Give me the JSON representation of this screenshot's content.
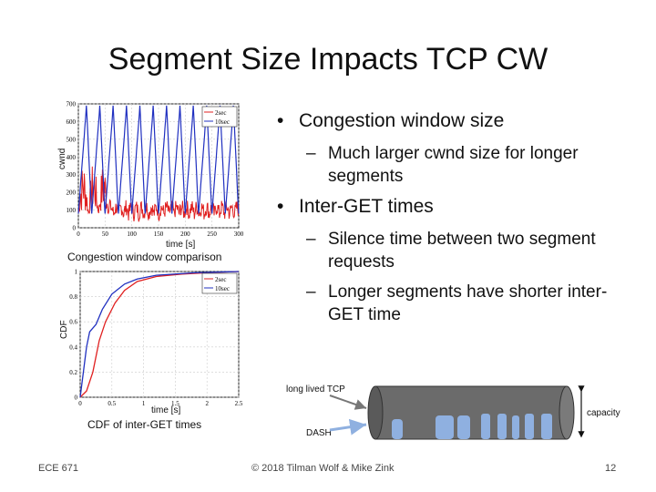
{
  "slide": {
    "title": "Segment Size Impacts TCP CW",
    "bullets": [
      {
        "text": "Congestion window size",
        "subs": [
          "Much larger cwnd size for longer segments"
        ]
      },
      {
        "text": "Inter-GET times",
        "subs": [
          "Silence time between two segment requests",
          "Longer segments have shorter inter-GET time"
        ]
      }
    ],
    "bullet_symbol": "•",
    "dash_symbol": "–"
  },
  "figures": {
    "cwnd": {
      "caption": "Congestion window comparison",
      "ylabel": "cwnd",
      "xlabel": "time [s]",
      "yticks": [
        "0",
        "100",
        "200",
        "300",
        "400",
        "500",
        "600",
        "700"
      ],
      "xticks": [
        "0",
        "50",
        "100",
        "150",
        "200",
        "250",
        "300"
      ],
      "legend": [
        "2sec",
        "10sec"
      ]
    },
    "cdf": {
      "caption": "CDF of inter-GET times",
      "ylabel": "CDF",
      "xlabel": "time [s]",
      "yticks": [
        "0",
        "0.2",
        "0.4",
        "0.6",
        "0.8",
        "1"
      ],
      "xticks": [
        "0",
        "0.5",
        "1",
        "1.5",
        "2",
        "2.5"
      ],
      "legend": [
        "2sec",
        "10sec"
      ]
    },
    "pipe": {
      "label_long": "long lived TCP",
      "label_dash": "DASH",
      "label_capacity": "capacity"
    }
  },
  "colors": {
    "series_2sec": "#e02020",
    "series_10sec": "#2030c0",
    "pipe": "#6b6b6b",
    "dash_fill": "#8fb0e0"
  },
  "footer": {
    "left": "ECE 671",
    "center": "© 2018 Tilman Wolf & Mike Zink",
    "page": "12"
  }
}
